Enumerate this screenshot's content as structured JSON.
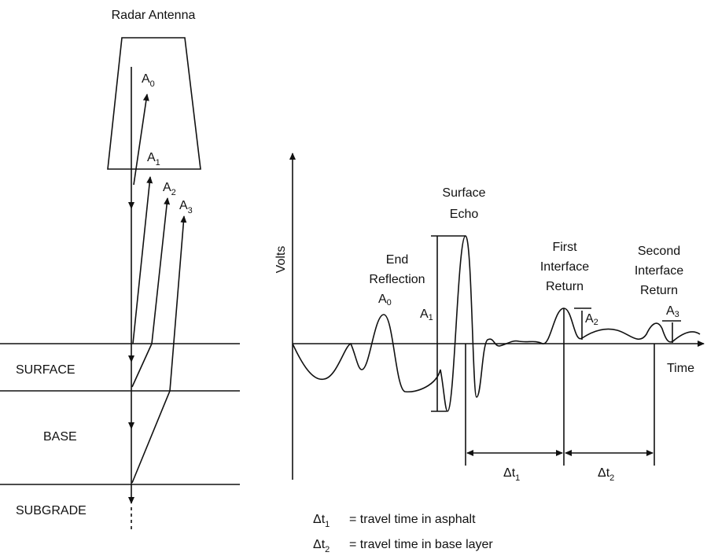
{
  "antenna": {
    "title": "Radar Antenna",
    "amplitudes": [
      {
        "symbol": "A",
        "index": "0"
      },
      {
        "symbol": "A",
        "index": "1"
      },
      {
        "symbol": "A",
        "index": "2"
      },
      {
        "symbol": "A",
        "index": "3"
      }
    ]
  },
  "layers": [
    "SURFACE",
    "BASE",
    "SUBGRADE"
  ],
  "waveform": {
    "y_label": "Volts",
    "x_label": "Time",
    "annotations": [
      {
        "lines": [
          "End",
          "Reflection"
        ]
      },
      {
        "lines": [
          "Surface",
          "Echo"
        ]
      },
      {
        "lines": [
          "First",
          "Interface",
          "Return"
        ]
      },
      {
        "lines": [
          "Second",
          "Interface",
          "Return"
        ]
      }
    ],
    "amplitudes": [
      {
        "symbol": "A",
        "index": "0"
      },
      {
        "symbol": "A",
        "index": "1"
      },
      {
        "symbol": "A",
        "index": "2"
      },
      {
        "symbol": "A",
        "index": "3"
      }
    ],
    "intervals": [
      {
        "symbol": "Δt",
        "index": "1"
      },
      {
        "symbol": "Δt",
        "index": "2"
      }
    ]
  },
  "legend": [
    {
      "symbol": "Δt",
      "index": "1",
      "text": "= travel time in asphalt"
    },
    {
      "symbol": "Δt",
      "index": "2",
      "text": "= travel time in base layer"
    }
  ]
}
